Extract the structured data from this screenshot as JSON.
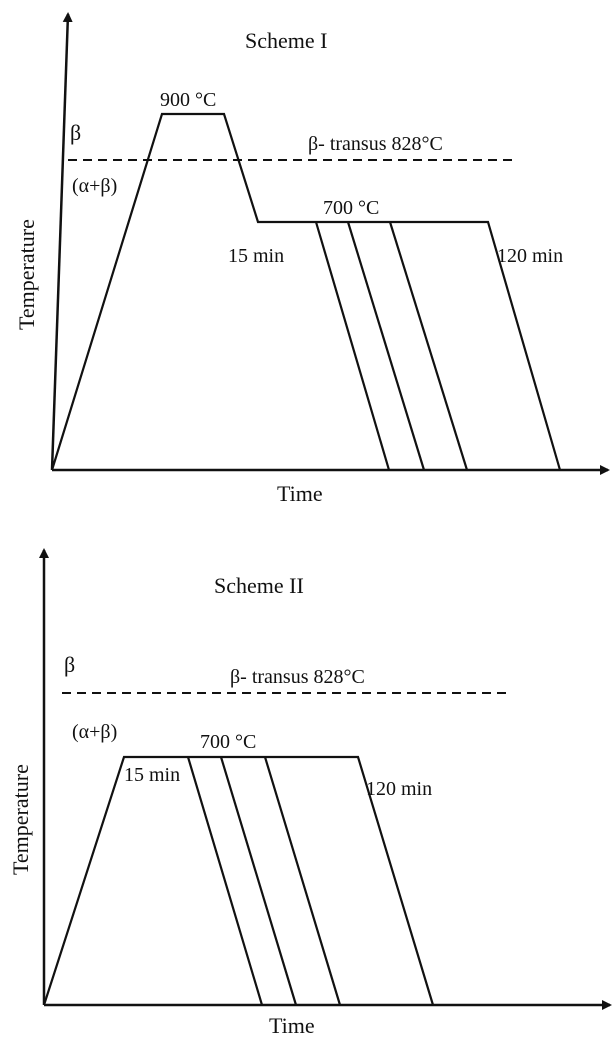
{
  "scheme1": {
    "title": "Scheme I",
    "y_axis_label": "Temperature",
    "x_axis_label": "Time",
    "beta_label": "β",
    "alpha_beta_label": "(α+β)",
    "transus_label": "β- transus 828°C",
    "peak_temp_label": "900 °C",
    "hold_temp_label": "700 °C",
    "short_hold_label": "15 min",
    "long_hold_label": "120 min"
  },
  "scheme2": {
    "title": "Scheme II",
    "y_axis_label": "Temperature",
    "x_axis_label": "Time",
    "beta_label": "β",
    "alpha_beta_label": "(α+β)",
    "transus_label": "β- transus 828°C",
    "hold_temp_label": "700 °C",
    "short_hold_label": "15 min",
    "long_hold_label": "120 min"
  }
}
